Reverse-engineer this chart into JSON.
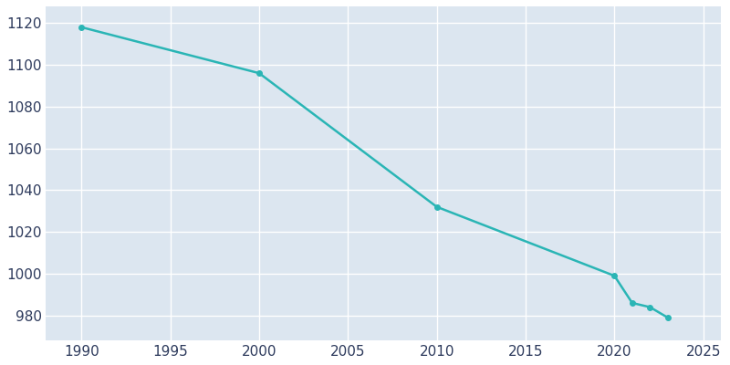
{
  "years": [
    1990,
    2000,
    2010,
    2020,
    2021,
    2022,
    2023
  ],
  "population": [
    1118,
    1096,
    1032,
    999,
    986,
    984,
    979
  ],
  "line_color": "#2ab5b5",
  "marker": "o",
  "marker_size": 4,
  "line_width": 1.8,
  "background_color": "#dce6f0",
  "fig_bg_color": "#ffffff",
  "grid_color": "#ffffff",
  "tick_color": "#2d3a5c",
  "tick_fontsize": 11,
  "xlim": [
    1988,
    2026
  ],
  "ylim": [
    968,
    1128
  ],
  "yticks": [
    980,
    1000,
    1020,
    1040,
    1060,
    1080,
    1100,
    1120
  ],
  "xticks": [
    1990,
    1995,
    2000,
    2005,
    2010,
    2015,
    2020,
    2025
  ]
}
